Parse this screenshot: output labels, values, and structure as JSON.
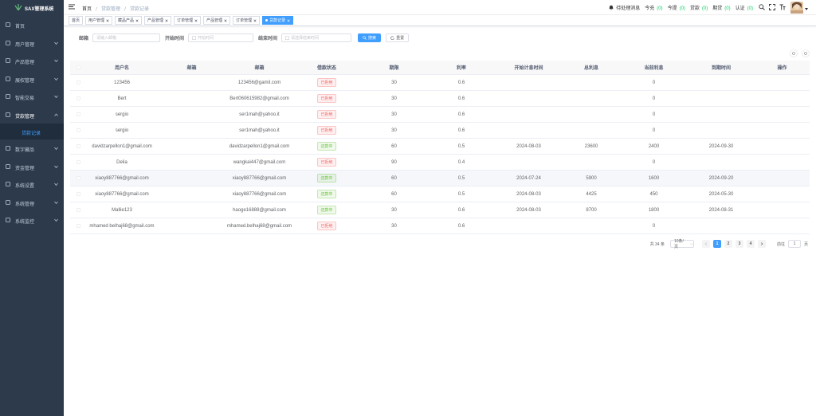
{
  "sidebar": {
    "title": "SAX管理系统",
    "menu": [
      {
        "label": "首页"
      },
      {
        "label": "用户管理"
      },
      {
        "label": "产品管理"
      },
      {
        "label": "展权管理"
      },
      {
        "label": "智能交易"
      },
      {
        "label": "贷款管理",
        "children": [
          "贷款记录"
        ]
      },
      {
        "label": "数字藏品"
      },
      {
        "label": "资金管理"
      },
      {
        "label": "系统设置"
      },
      {
        "label": "系统管理"
      },
      {
        "label": "系统监控"
      }
    ]
  },
  "header": {
    "breadcrumb": [
      "首页",
      "贷款管理",
      "贷款记录"
    ],
    "notice_label": "待处理消息",
    "counters": [
      {
        "label": "今充",
        "count": "(0)"
      },
      {
        "label": "今提",
        "count": "(0)"
      },
      {
        "label": "贷款",
        "count": "(0)"
      },
      {
        "label": "期贷",
        "count": "(0)"
      },
      {
        "label": "认证",
        "count": "(0)"
      }
    ]
  },
  "tags": {
    "items": [
      "首页",
      "用户管理",
      "藏品产品",
      "产品管理",
      "订单管理",
      "产品管理",
      "订单管理",
      "贷款记录"
    ],
    "active": 7
  },
  "search": {
    "fields": [
      {
        "label": "邮箱",
        "placeholder": "请输入邮箱"
      },
      {
        "label": "开始时间",
        "placeholder": "开始时间"
      },
      {
        "label": "结束时间",
        "placeholder": "请选择结束时间"
      }
    ],
    "buttons": [
      "搜索",
      "重置"
    ]
  },
  "table": {
    "columns": [
      "用户名",
      "邮箱",
      "邮箱",
      "借款状态",
      "期限",
      "利率",
      "开始计息时间",
      "总利息",
      "当前利息",
      "到期时间",
      "操作"
    ],
    "highlighted_row": 6,
    "rows": [
      {
        "cells": [
          "123456",
          null,
          "123456@gamil.com",
          "已拒绝",
          30,
          0.6,
          null,
          null,
          0,
          null,
          null
        ],
        "status_color": "#f56c6c"
      },
      {
        "cells": [
          "Bert",
          null,
          "Bert060615982@gmail.com",
          "已拒绝",
          30,
          0.6,
          null,
          null,
          0,
          null,
          null
        ],
        "status_color": "#f56c6c"
      },
      {
        "cells": [
          "sergio",
          null,
          "ser1mah@yahoo.it",
          "已拒绝",
          30,
          0.6,
          null,
          null,
          0,
          null,
          null
        ],
        "status_color": "#f56c6c"
      },
      {
        "cells": [
          "sergio",
          null,
          "ser1mah@yahoo.it",
          "已拒绝",
          30,
          0.6,
          null,
          null,
          0,
          null,
          null
        ],
        "status_color": "#f56c6c"
      },
      {
        "cells": [
          "davidzarpellon1@gmail.com",
          null,
          "davidzarpellon1@gmail.com",
          "还款中",
          60,
          0.5,
          "2024-08-03",
          23600,
          2400,
          "2024-09-30",
          null
        ],
        "status_color": "#67c23a"
      },
      {
        "cells": [
          "Delia",
          null,
          "wangkai447@gmail.com",
          "已拒绝",
          90,
          0.4,
          null,
          null,
          0,
          null,
          null
        ],
        "status_color": "#f56c6c"
      },
      {
        "cells": [
          "xiaoy887766@gmail.com",
          null,
          "xiaoy887766@gmail.com",
          "还款中",
          60,
          0.5,
          "2024-07-24",
          5900,
          1600,
          "2024-09-20",
          null
        ],
        "status_color": "#67c23a"
      },
      {
        "cells": [
          "xiaoy887766@gmail.com",
          null,
          "xiaoy887766@gmail.com",
          "还款中",
          60,
          0.5,
          "2024-08-03",
          4425,
          450,
          "2024-05-30",
          null
        ],
        "status_color": "#67c23a"
      },
      {
        "cells": [
          "Mallie123",
          null,
          "haoge16888@gmail.com",
          "还款中",
          30,
          0.6,
          "2024-08-03",
          8700,
          1800,
          "2024-08-31",
          null
        ],
        "status_color": "#67c23a"
      },
      {
        "cells": [
          "mhamed belhaj68@gmail.com",
          null,
          "mhamed.belhaj68@gmail.com",
          "已拒绝",
          30,
          0.6,
          null,
          null,
          0,
          null,
          null
        ],
        "status_color": "#f56c6c"
      }
    ]
  },
  "pagination": {
    "total": "共 34 条",
    "page_size": "10条/页",
    "pages": [
      1,
      2,
      3,
      4
    ],
    "current": 0,
    "goto_prefix": "前往",
    "goto_value": 1,
    "goto_suffix": "页"
  }
}
